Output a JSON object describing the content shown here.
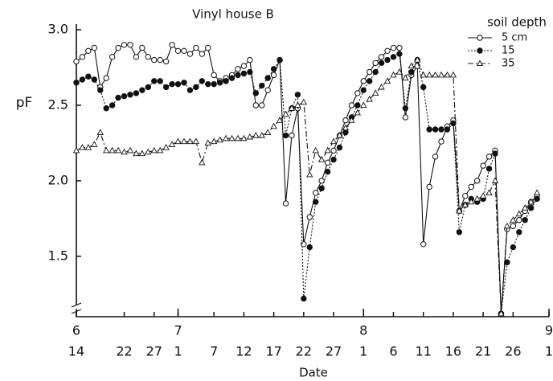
{
  "chart_data": {
    "type": "line",
    "title": "Vinyl house B",
    "y_label": "pF",
    "x_label": "Date",
    "legend_title": "soil depth",
    "legend_position": "upper right",
    "xlim": [
      0,
      79
    ],
    "ylim": [
      1.1,
      3.0
    ],
    "yticks": [
      {
        "value": 1.5,
        "label": "1.5"
      },
      {
        "value": 2.0,
        "label": "2.0"
      },
      {
        "value": 2.5,
        "label": "2.5"
      },
      {
        "value": 3.0,
        "label": "3.0"
      }
    ],
    "xticks": [
      {
        "value": 0,
        "label": "14"
      },
      {
        "value": 8,
        "label": "22"
      },
      {
        "value": 13,
        "label": "27"
      },
      {
        "value": 17,
        "label": "1"
      },
      {
        "value": 23,
        "label": "7"
      },
      {
        "value": 28,
        "label": "12"
      },
      {
        "value": 33,
        "label": "17"
      },
      {
        "value": 38,
        "label": "22"
      },
      {
        "value": 43,
        "label": "27"
      },
      {
        "value": 48,
        "label": "1"
      },
      {
        "value": 53,
        "label": "6"
      },
      {
        "value": 58,
        "label": "11"
      },
      {
        "value": 63,
        "label": "16"
      },
      {
        "value": 68,
        "label": "21"
      },
      {
        "value": 73,
        "label": "26"
      },
      {
        "value": 79,
        "label": "1"
      }
    ],
    "month_ticks": [
      {
        "value": 0,
        "label": "6"
      },
      {
        "value": 17,
        "label": "7"
      },
      {
        "value": 48,
        "label": "8"
      },
      {
        "value": 79,
        "label": "9"
      }
    ],
    "x": [
      0,
      1,
      2,
      3,
      4,
      5,
      6,
      7,
      8,
      9,
      10,
      11,
      12,
      13,
      14,
      15,
      16,
      17,
      18,
      19,
      20,
      21,
      22,
      23,
      24,
      25,
      26,
      27,
      28,
      29,
      30,
      31,
      32,
      33,
      34,
      35,
      36,
      37,
      38,
      39,
      40,
      41,
      42,
      43,
      44,
      45,
      46,
      47,
      48,
      49,
      50,
      51,
      52,
      53,
      54,
      55,
      56,
      57,
      58,
      59,
      60,
      61,
      62,
      63,
      64,
      65,
      66,
      67,
      68,
      69,
      70,
      71,
      72,
      73,
      74,
      75,
      76,
      77
    ],
    "series": [
      {
        "name": "5 cm",
        "color": "#111111",
        "marker": "circle-open",
        "dash": "none",
        "values": [
          2.79,
          2.82,
          2.86,
          2.88,
          2.62,
          2.68,
          2.82,
          2.88,
          2.9,
          2.9,
          2.82,
          2.88,
          2.82,
          2.8,
          2.8,
          2.79,
          2.9,
          2.86,
          2.86,
          2.84,
          2.88,
          2.84,
          2.88,
          2.7,
          2.66,
          2.68,
          2.7,
          2.74,
          2.76,
          2.8,
          2.5,
          2.5,
          2.6,
          2.7,
          2.8,
          1.85,
          2.3,
          2.48,
          1.58,
          1.76,
          1.92,
          2.0,
          2.12,
          2.2,
          2.3,
          2.4,
          2.5,
          2.58,
          2.66,
          2.72,
          2.78,
          2.82,
          2.86,
          2.88,
          2.88,
          2.42,
          2.7,
          2.76,
          1.58,
          1.96,
          2.16,
          2.26,
          2.36,
          2.4,
          1.8,
          1.9,
          1.96,
          2.0,
          2.1,
          2.16,
          2.2,
          1.12,
          1.68,
          1.7,
          1.74,
          1.8,
          1.86,
          1.9
        ]
      },
      {
        "name": "15",
        "color": "#111111",
        "marker": "circle-filled",
        "dash": "2 2",
        "values": [
          2.65,
          2.67,
          2.69,
          2.67,
          2.6,
          2.48,
          2.5,
          2.55,
          2.56,
          2.57,
          2.58,
          2.6,
          2.62,
          2.66,
          2.66,
          2.62,
          2.64,
          2.64,
          2.65,
          2.6,
          2.62,
          2.66,
          2.64,
          2.64,
          2.65,
          2.66,
          2.68,
          2.7,
          2.71,
          2.72,
          2.58,
          2.63,
          2.68,
          2.74,
          2.8,
          2.3,
          2.48,
          2.57,
          1.22,
          1.56,
          1.86,
          1.95,
          2.06,
          2.14,
          2.22,
          2.32,
          2.42,
          2.5,
          2.6,
          2.66,
          2.72,
          2.78,
          2.8,
          2.82,
          2.84,
          2.48,
          2.72,
          2.8,
          2.62,
          2.34,
          2.34,
          2.34,
          2.34,
          2.38,
          1.66,
          1.84,
          1.88,
          1.86,
          1.88,
          2.08,
          2.18,
          1.12,
          1.46,
          1.56,
          1.66,
          1.74,
          1.82,
          1.88
        ]
      },
      {
        "name": "35",
        "color": "#111111",
        "marker": "triangle-open",
        "dash": "7 3 2 3",
        "values": [
          2.2,
          2.22,
          2.22,
          2.24,
          2.32,
          2.2,
          2.2,
          2.2,
          2.19,
          2.2,
          2.18,
          2.18,
          2.19,
          2.2,
          2.2,
          2.22,
          2.24,
          2.26,
          2.26,
          2.26,
          2.26,
          2.12,
          2.25,
          2.26,
          2.27,
          2.28,
          2.28,
          2.28,
          2.28,
          2.29,
          2.3,
          2.3,
          2.32,
          2.36,
          2.4,
          2.44,
          2.48,
          2.5,
          2.52,
          2.04,
          2.2,
          2.14,
          2.2,
          2.26,
          2.3,
          2.35,
          2.4,
          2.45,
          2.5,
          2.54,
          2.58,
          2.62,
          2.66,
          2.7,
          2.72,
          2.68,
          2.76,
          2.8,
          2.7,
          2.7,
          2.7,
          2.7,
          2.7,
          2.7,
          1.8,
          1.84,
          1.86,
          1.88,
          1.9,
          1.92,
          2.0,
          1.12,
          1.7,
          1.74,
          1.78,
          1.82,
          1.86,
          1.92
        ]
      }
    ]
  }
}
